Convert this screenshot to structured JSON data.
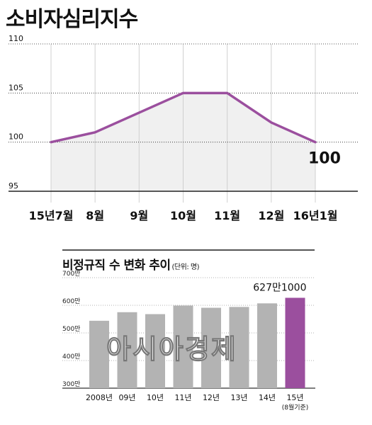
{
  "title": "소비자심리지수",
  "chart_data": [
    {
      "type": "line",
      "title": "소비자심리지수",
      "categories": [
        "15년7월",
        "8월",
        "9월",
        "10월",
        "11월",
        "12월",
        "16년1월"
      ],
      "values": [
        100,
        101,
        103,
        105,
        105,
        102,
        100
      ],
      "ylim": [
        95,
        110
      ],
      "yticks": [
        95,
        100,
        105,
        110
      ],
      "last_label": "100",
      "line_color": "#9b4f9e",
      "fill_color": "#f0f0f0"
    },
    {
      "type": "bar",
      "title": "비정규직 수 변화 추이",
      "unit_label": "(단위: 명)",
      "categories": [
        "2008년",
        "09년",
        "10년",
        "11년",
        "12년",
        "13년",
        "14년",
        "15년"
      ],
      "category_note": "(8월기준)",
      "values": [
        544,
        575,
        568,
        599,
        591,
        594,
        607,
        627.1
      ],
      "ylim": [
        300,
        700
      ],
      "yticks": [
        "300만",
        "400만",
        "500만",
        "600만",
        "700만"
      ],
      "highlight_label": "627만1000",
      "bar_color": "#b3b3b3",
      "highlight_color": "#9b4f9e"
    }
  ],
  "watermark": "아시아경제"
}
